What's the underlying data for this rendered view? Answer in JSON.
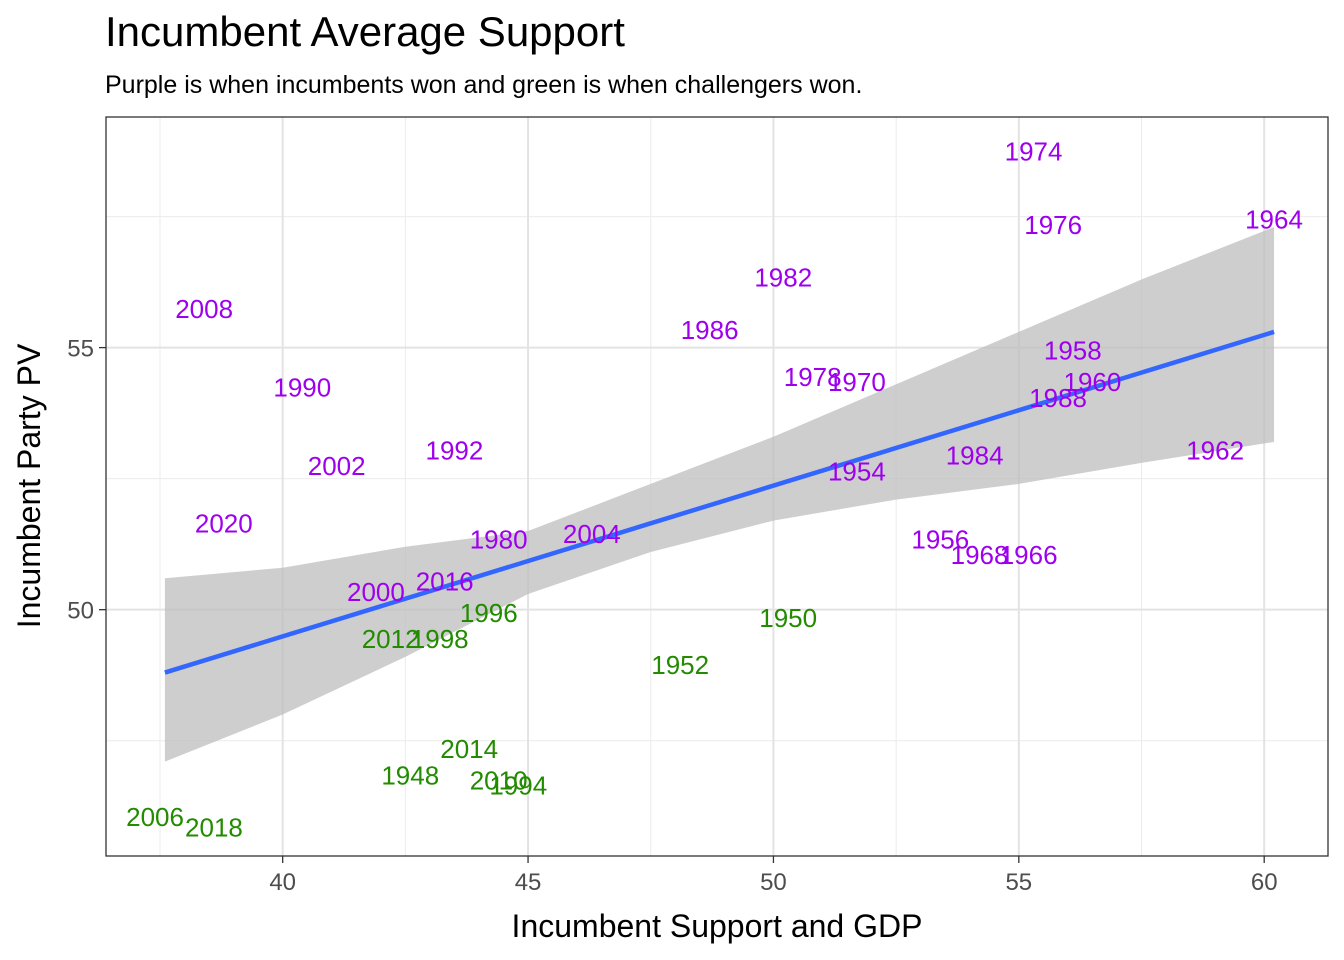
{
  "chart_data": {
    "type": "scatter",
    "title": "Incumbent Average Support",
    "subtitle": "Purple is when incumbents won and green is when challengers won.",
    "xlabel": "Incumbent Support and GDP",
    "ylabel": "Incumbent Party PV",
    "xlim": [
      36.4,
      61.3
    ],
    "ylim": [
      45.3,
      59.4
    ],
    "x_ticks": [
      40,
      45,
      50,
      55,
      60
    ],
    "y_ticks": [
      50,
      55
    ],
    "grid": true,
    "colors": {
      "incumbent_won": "#9E00EE",
      "challenger_won": "#228B00",
      "fit_line": "#3366FF",
      "ribbon": "#BEBEBE"
    },
    "points": [
      {
        "label": "1974",
        "x": 55.3,
        "y": 58.7,
        "outcome": "incumbent_won"
      },
      {
        "label": "1976",
        "x": 55.7,
        "y": 57.3,
        "outcome": "incumbent_won"
      },
      {
        "label": "1964",
        "x": 60.2,
        "y": 57.4,
        "outcome": "incumbent_won"
      },
      {
        "label": "1982",
        "x": 50.2,
        "y": 56.3,
        "outcome": "incumbent_won"
      },
      {
        "label": "2008",
        "x": 38.4,
        "y": 55.7,
        "outcome": "incumbent_won"
      },
      {
        "label": "1986",
        "x": 48.7,
        "y": 55.3,
        "outcome": "incumbent_won"
      },
      {
        "label": "1958",
        "x": 56.1,
        "y": 54.9,
        "outcome": "incumbent_won"
      },
      {
        "label": "1960",
        "x": 56.5,
        "y": 54.3,
        "outcome": "incumbent_won"
      },
      {
        "label": "1978",
        "x": 50.8,
        "y": 54.4,
        "outcome": "incumbent_won"
      },
      {
        "label": "1970",
        "x": 51.7,
        "y": 54.3,
        "outcome": "incumbent_won"
      },
      {
        "label": "1990",
        "x": 40.4,
        "y": 54.2,
        "outcome": "incumbent_won"
      },
      {
        "label": "1988",
        "x": 55.8,
        "y": 54.0,
        "outcome": "incumbent_won"
      },
      {
        "label": "1992",
        "x": 43.5,
        "y": 53.0,
        "outcome": "incumbent_won"
      },
      {
        "label": "1962",
        "x": 59.0,
        "y": 53.0,
        "outcome": "incumbent_won"
      },
      {
        "label": "1984",
        "x": 54.1,
        "y": 52.9,
        "outcome": "incumbent_won"
      },
      {
        "label": "2002",
        "x": 41.1,
        "y": 52.7,
        "outcome": "incumbent_won"
      },
      {
        "label": "1954",
        "x": 51.7,
        "y": 52.6,
        "outcome": "incumbent_won"
      },
      {
        "label": "2020",
        "x": 38.8,
        "y": 51.6,
        "outcome": "incumbent_won"
      },
      {
        "label": "1956",
        "x": 53.4,
        "y": 51.3,
        "outcome": "incumbent_won"
      },
      {
        "label": "1980",
        "x": 44.4,
        "y": 51.3,
        "outcome": "incumbent_won"
      },
      {
        "label": "2004",
        "x": 46.3,
        "y": 51.4,
        "outcome": "incumbent_won"
      },
      {
        "label": "1968",
        "x": 54.2,
        "y": 51.0,
        "outcome": "incumbent_won"
      },
      {
        "label": "1966",
        "x": 55.2,
        "y": 51.0,
        "outcome": "incumbent_won"
      },
      {
        "label": "2016",
        "x": 43.3,
        "y": 50.5,
        "outcome": "incumbent_won"
      },
      {
        "label": "2000",
        "x": 41.9,
        "y": 50.3,
        "outcome": "incumbent_won"
      },
      {
        "label": "1996",
        "x": 44.2,
        "y": 49.9,
        "outcome": "challenger_won"
      },
      {
        "label": "1950",
        "x": 50.3,
        "y": 49.8,
        "outcome": "challenger_won"
      },
      {
        "label": "2012",
        "x": 42.2,
        "y": 49.4,
        "outcome": "challenger_won"
      },
      {
        "label": "1998",
        "x": 43.2,
        "y": 49.4,
        "outcome": "challenger_won"
      },
      {
        "label": "1952",
        "x": 48.1,
        "y": 48.9,
        "outcome": "challenger_won"
      },
      {
        "label": "2014",
        "x": 43.8,
        "y": 47.3,
        "outcome": "challenger_won"
      },
      {
        "label": "1948",
        "x": 42.6,
        "y": 46.8,
        "outcome": "challenger_won"
      },
      {
        "label": "2010",
        "x": 44.4,
        "y": 46.7,
        "outcome": "challenger_won"
      },
      {
        "label": "1994",
        "x": 44.8,
        "y": 46.6,
        "outcome": "challenger_won"
      },
      {
        "label": "2006",
        "x": 37.4,
        "y": 46.0,
        "outcome": "challenger_won"
      },
      {
        "label": "2018",
        "x": 38.6,
        "y": 45.8,
        "outcome": "challenger_won"
      }
    ],
    "fit_line": {
      "x": [
        37.6,
        60.2
      ],
      "y": [
        48.8,
        55.3
      ]
    },
    "confidence_band": {
      "x": [
        37.6,
        40,
        42.5,
        45,
        47.5,
        50,
        52.5,
        55,
        57.5,
        60.2
      ],
      "lower": [
        47.1,
        48.0,
        49.1,
        50.3,
        51.1,
        51.7,
        52.1,
        52.4,
        52.8,
        53.2
      ],
      "upper": [
        50.6,
        50.8,
        51.2,
        51.5,
        52.4,
        53.3,
        54.3,
        55.3,
        56.3,
        57.3
      ]
    }
  }
}
